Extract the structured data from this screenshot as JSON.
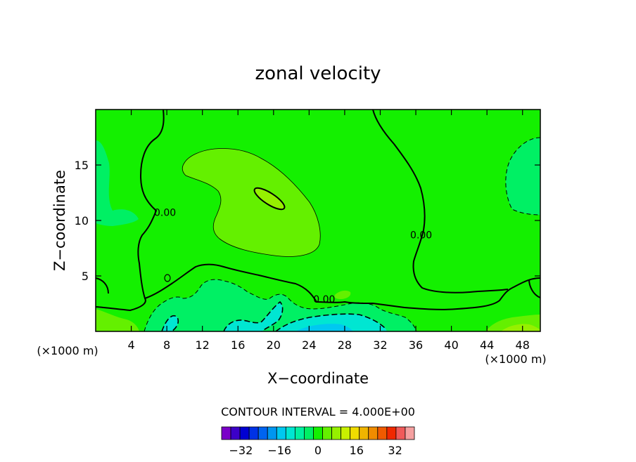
{
  "chart_data": {
    "type": "heatmap",
    "title": "zonal velocity",
    "xlabel": "X−coordinate",
    "ylabel": "Z−coordinate",
    "x_unit_left": "(×1000 m)",
    "x_unit_right": "(×1000 m)",
    "xlim": [
      0,
      50
    ],
    "ylim": [
      0,
      20
    ],
    "x_ticks": [
      4,
      8,
      12,
      16,
      20,
      24,
      28,
      32,
      36,
      40,
      44,
      48
    ],
    "y_ticks": [
      5,
      10,
      15
    ],
    "contour_interval_label": "CONTOUR INTERVAL = 4.000E+00",
    "contour_labels": [
      {
        "text": "0.00",
        "x": 7.8,
        "y": 10.4
      },
      {
        "text": "0.00",
        "x": 25.7,
        "y": 2.6
      },
      {
        "text": "0.00",
        "x": 36.6,
        "y": 8.4
      }
    ],
    "colorbar": {
      "levels": [
        -40,
        -36,
        -32,
        -28,
        -24,
        -20,
        -16,
        -12,
        -8,
        -4,
        0,
        4,
        8,
        12,
        16,
        20,
        24,
        28,
        32,
        36,
        40
      ],
      "colors": [
        "#7a00c8",
        "#3c00c8",
        "#0000d2",
        "#0032e6",
        "#0064f0",
        "#0096f0",
        "#00c8f0",
        "#00e6d2",
        "#00f0a0",
        "#00f064",
        "#14f000",
        "#64f000",
        "#96f000",
        "#c8f000",
        "#f0dc00",
        "#f0b400",
        "#f08c00",
        "#f05a00",
        "#f02800",
        "#f05a5a",
        "#f5a0a0"
      ],
      "tick_labels": [
        "−32",
        "−16",
        "0",
        "16",
        "32"
      ],
      "tick_values": [
        -32,
        -16,
        0,
        16,
        32
      ]
    }
  }
}
